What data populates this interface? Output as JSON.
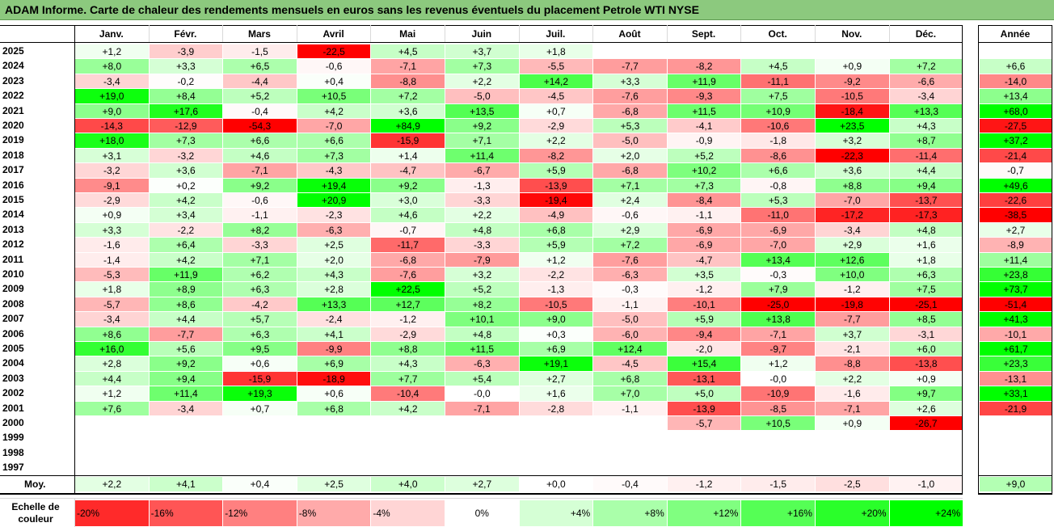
{
  "title": "ADAM Informe. Carte de chaleur des rendements mensuels en euros sans les revenus éventuels du placement Petrole WTI NYSE",
  "chart_data": {
    "type": "heatmap",
    "title": "ADAM Informe. Carte de chaleur des rendements mensuels en euros sans les revenus éventuels du placement Petrole WTI NYSE",
    "months": [
      "Janv.",
      "Févr.",
      "Mars",
      "Avril",
      "Mai",
      "Juin",
      "Juil.",
      "Août",
      "Sept.",
      "Oct.",
      "Nov.",
      "Déc."
    ],
    "year_header": "Année",
    "avg_label": "Moy.",
    "rows": [
      {
        "year": "2025",
        "values": [
          "+1,2",
          "-3,9",
          "-1,5",
          "-22,5",
          "+4,5",
          "+3,7",
          "+1,8",
          "",
          "",
          "",
          "",
          ""
        ],
        "annual": ""
      },
      {
        "year": "2024",
        "values": [
          "+8,0",
          "+3,3",
          "+6,5",
          "-0,6",
          "-7,1",
          "+7,3",
          "-5,5",
          "-7,7",
          "-8,2",
          "+4,5",
          "+0,9",
          "+7,2"
        ],
        "annual": "+6,6"
      },
      {
        "year": "2023",
        "values": [
          "-3,4",
          "-0,2",
          "-4,4",
          "+0,4",
          "-8,8",
          "+2,2",
          "+14,2",
          "+3,3",
          "+11,9",
          "-11,1",
          "-9,2",
          "-6,6"
        ],
        "annual": "-14,0"
      },
      {
        "year": "2022",
        "values": [
          "+19,0",
          "+8,4",
          "+5,2",
          "+10,5",
          "+7,2",
          "-5,0",
          "-4,5",
          "-7,6",
          "-9,3",
          "+7,5",
          "-10,5",
          "-3,4"
        ],
        "annual": "+13,4"
      },
      {
        "year": "2021",
        "values": [
          "+9,0",
          "+17,6",
          "-0,4",
          "+4,2",
          "+3,6",
          "+13,5",
          "+0,7",
          "-6,8",
          "+11,5",
          "+10,9",
          "-18,4",
          "+13,3"
        ],
        "annual": "+68,0"
      },
      {
        "year": "2020",
        "values": [
          "-14,3",
          "-12,9",
          "-54,3",
          "-7,0",
          "+84,9",
          "+9,2",
          "-2,9",
          "+5,3",
          "-4,1",
          "-10,6",
          "+23,5",
          "+4,3"
        ],
        "annual": "-27,5"
      },
      {
        "year": "2019",
        "values": [
          "+18,0",
          "+7,3",
          "+6,6",
          "+6,6",
          "-15,9",
          "+7,1",
          "+2,2",
          "-5,0",
          "-0,9",
          "-1,8",
          "+3,2",
          "+8,7"
        ],
        "annual": "+37,2"
      },
      {
        "year": "2018",
        "values": [
          "+3,1",
          "-3,2",
          "+4,6",
          "+7,3",
          "+1,4",
          "+11,4",
          "-8,2",
          "+2,0",
          "+5,2",
          "-8,6",
          "-22,3",
          "-11,4"
        ],
        "annual": "-21,4"
      },
      {
        "year": "2017",
        "values": [
          "-3,2",
          "+3,6",
          "-7,1",
          "-4,3",
          "-4,7",
          "-6,7",
          "+5,9",
          "-6,8",
          "+10,2",
          "+6,6",
          "+3,6",
          "+4,4"
        ],
        "annual": "-0,7"
      },
      {
        "year": "2016",
        "values": [
          "-9,1",
          "+0,2",
          "+9,2",
          "+19,4",
          "+9,2",
          "-1,3",
          "-13,9",
          "+7,1",
          "+7,3",
          "-0,8",
          "+8,8",
          "+9,4"
        ],
        "annual": "+49,6"
      },
      {
        "year": "2015",
        "values": [
          "-2,9",
          "+4,2",
          "-0,6",
          "+20,9",
          "+3,0",
          "-3,3",
          "-19,4",
          "+2,4",
          "-8,4",
          "+5,3",
          "-7,0",
          "-13,7"
        ],
        "annual": "-22,6"
      },
      {
        "year": "2014",
        "values": [
          "+0,9",
          "+3,4",
          "-1,1",
          "-2,3",
          "+4,6",
          "+2,2",
          "-4,9",
          "-0,6",
          "-1,1",
          "-11,0",
          "-17,2",
          "-17,3"
        ],
        "annual": "-38,5"
      },
      {
        "year": "2013",
        "values": [
          "+3,3",
          "-2,2",
          "+8,2",
          "-6,3",
          "-0,7",
          "+4,8",
          "+6,8",
          "+2,9",
          "-6,9",
          "-6,9",
          "-3,4",
          "+4,8"
        ],
        "annual": "+2,7"
      },
      {
        "year": "2012",
        "values": [
          "-1,6",
          "+6,4",
          "-3,3",
          "+2,5",
          "-11,7",
          "-3,3",
          "+5,9",
          "+7,2",
          "-6,9",
          "-7,0",
          "+2,9",
          "+1,6"
        ],
        "annual": "-8,9"
      },
      {
        "year": "2011",
        "values": [
          "-1,4",
          "+4,2",
          "+7,1",
          "+2,0",
          "-6,8",
          "-7,9",
          "+1,2",
          "-7,6",
          "-4,7",
          "+13,4",
          "+12,6",
          "+1,8"
        ],
        "annual": "+11,4"
      },
      {
        "year": "2010",
        "values": [
          "-5,3",
          "+11,9",
          "+6,2",
          "+4,3",
          "-7,6",
          "+3,2",
          "-2,2",
          "-6,3",
          "+3,5",
          "-0,3",
          "+10,0",
          "+6,3"
        ],
        "annual": "+23,8"
      },
      {
        "year": "2009",
        "values": [
          "+1,8",
          "+8,9",
          "+6,3",
          "+2,8",
          "+22,5",
          "+5,2",
          "-1,3",
          "-0,3",
          "-1,2",
          "+7,9",
          "-1,2",
          "+7,5"
        ],
        "annual": "+73,7"
      },
      {
        "year": "2008",
        "values": [
          "-5,7",
          "+8,6",
          "-4,2",
          "+13,3",
          "+12,7",
          "+8,2",
          "-10,5",
          "-1,1",
          "-10,1",
          "-25,0",
          "-19,8",
          "-25,1"
        ],
        "annual": "-51,4"
      },
      {
        "year": "2007",
        "values": [
          "-3,4",
          "+4,4",
          "+5,7",
          "-2,4",
          "-1,2",
          "+10,1",
          "+9,0",
          "-5,0",
          "+5,9",
          "+13,8",
          "-7,7",
          "+8,5"
        ],
        "annual": "+41,3"
      },
      {
        "year": "2006",
        "values": [
          "+8,6",
          "-7,7",
          "+6,3",
          "+4,1",
          "-2,9",
          "+4,8",
          "+0,3",
          "-6,0",
          "-9,4",
          "-7,1",
          "+3,7",
          "-3,1"
        ],
        "annual": "-10,1"
      },
      {
        "year": "2005",
        "values": [
          "+16,0",
          "+5,6",
          "+9,5",
          "-9,9",
          "+8,8",
          "+11,5",
          "+6,9",
          "+12,4",
          "-2,0",
          "-9,7",
          "-2,1",
          "+6,0"
        ],
        "annual": "+61,7"
      },
      {
        "year": "2004",
        "values": [
          "+2,8",
          "+9,2",
          "+0,6",
          "+6,9",
          "+4,3",
          "-6,3",
          "+19,1",
          "-4,5",
          "+15,4",
          "+1,2",
          "-8,8",
          "-13,8"
        ],
        "annual": "+23,3"
      },
      {
        "year": "2003",
        "values": [
          "+4,4",
          "+9,4",
          "-15,9",
          "-18,9",
          "+7,7",
          "+5,4",
          "+2,7",
          "+6,8",
          "-13,1",
          "-0,0",
          "+2,2",
          "+0,9"
        ],
        "annual": "-13,1"
      },
      {
        "year": "2002",
        "values": [
          "+1,2",
          "+11,4",
          "+19,3",
          "+0,6",
          "-10,4",
          "-0,0",
          "+1,6",
          "+7,0",
          "+5,0",
          "-10,9",
          "-1,6",
          "+9,7"
        ],
        "annual": "+33,1"
      },
      {
        "year": "2001",
        "values": [
          "+7,6",
          "-3,4",
          "+0,7",
          "+6,8",
          "+4,2",
          "-7,1",
          "-2,8",
          "-1,1",
          "-13,9",
          "-8,5",
          "-7,1",
          "+2,6"
        ],
        "annual": "-21,9"
      },
      {
        "year": "2000",
        "values": [
          "",
          "",
          "",
          "",
          "",
          "",
          "",
          "",
          "-5,7",
          "+10,5",
          "+0,9",
          "-26,7"
        ],
        "annual": ""
      },
      {
        "year": "1999",
        "values": [
          "",
          "",
          "",
          "",
          "",
          "",
          "",
          "",
          "",
          "",
          "",
          ""
        ],
        "annual": ""
      },
      {
        "year": "1998",
        "values": [
          "",
          "",
          "",
          "",
          "",
          "",
          "",
          "",
          "",
          "",
          "",
          ""
        ],
        "annual": ""
      },
      {
        "year": "1997",
        "values": [
          "",
          "",
          "",
          "",
          "",
          "",
          "",
          "",
          "",
          "",
          "",
          ""
        ],
        "annual": ""
      }
    ],
    "averages": [
      "+2,2",
      "+4,1",
      "+0,4",
      "+2,5",
      "+4,0",
      "+2,7",
      "+0,0",
      "-0,4",
      "-1,2",
      "-1,5",
      "-2,5",
      "-1,0"
    ],
    "annual_average": "+9,0",
    "scale": {
      "label": "Echelle de couleur",
      "steps": [
        "-20%",
        "-16%",
        "-12%",
        "-8%",
        "-4%",
        "0%",
        "+4%",
        "+8%",
        "+12%",
        "+16%",
        "+20%",
        "+24%"
      ],
      "values": [
        -20,
        -16,
        -12,
        -8,
        -4,
        0,
        4,
        8,
        12,
        16,
        20,
        24
      ]
    },
    "colors": {
      "negative_max": "#ff0000",
      "neutral": "#ffffff",
      "positive_max": "#00ff00",
      "title_bg": "#8cc97e"
    }
  }
}
